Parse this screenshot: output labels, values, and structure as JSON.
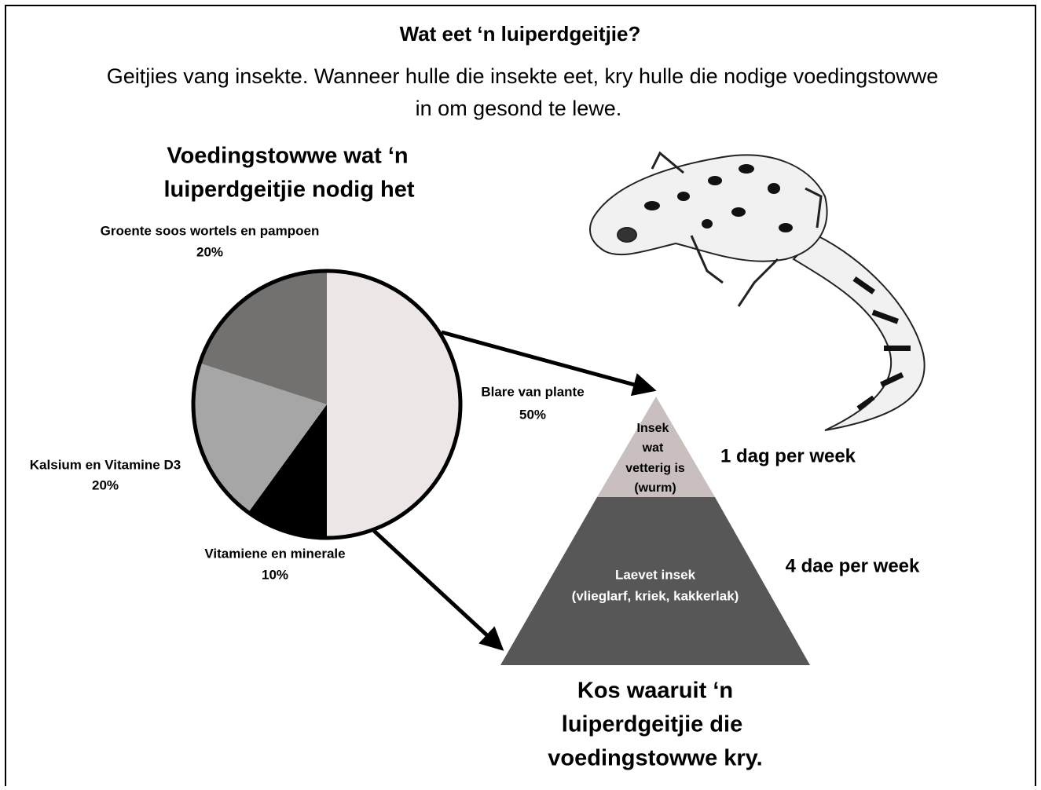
{
  "header": {
    "title": "Wat eet ‘n luiperdgeitjie?",
    "subtitle": [
      "Geitjies vang insekte. Wanneer hulle die insekte eet, kry hulle die nodige voedingstowwe",
      "in om gesond te lewe."
    ]
  },
  "chart_data": {
    "type": "pie",
    "title": [
      "Voedingstowwe wat ‘n",
      "luiperdgeitjie nodig het"
    ],
    "categories": [
      "Blare van plante",
      "Vitamiene en minerale",
      "Kalsium en Vitamine D3",
      "Groente soos wortels en pampoen"
    ],
    "values": [
      50,
      10,
      20,
      20
    ],
    "value_labels": [
      "50%",
      "10%",
      "20%",
      "20%"
    ],
    "colors": [
      "#ede6e6",
      "#000000",
      "#a6a6a6",
      "#737070"
    ]
  },
  "pyramid": {
    "levels": [
      {
        "label": [
          "Insek",
          "wat",
          "vetterig is",
          "(wurm)"
        ],
        "frequency": "1 dag per week"
      },
      {
        "label": [
          "Laevet insek",
          "(vlieglarf, kriek, kakkerlak)"
        ],
        "frequency": "4 dae per week"
      }
    ],
    "caption": [
      "Kos waaruit ‘n",
      "luiperdgeitjie die",
      "voedingstowwe kry."
    ]
  }
}
